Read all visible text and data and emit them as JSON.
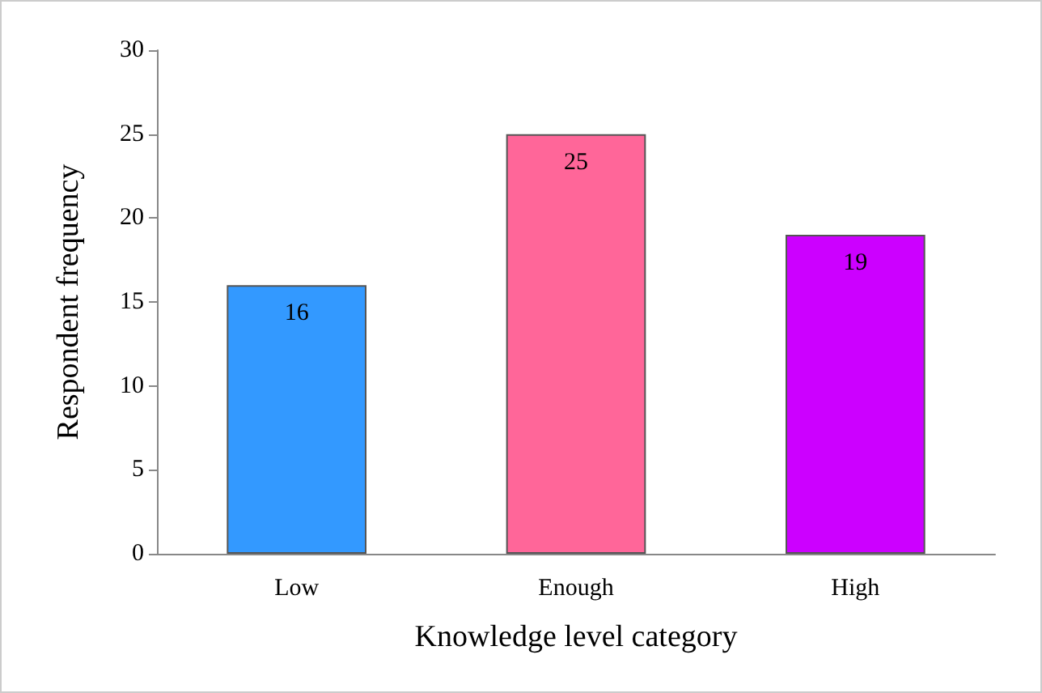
{
  "chart_data": {
    "type": "bar",
    "xlabel": "Knowledge level category",
    "ylabel": "Respondent frequency",
    "categories": [
      "Low",
      "Enough",
      "High"
    ],
    "values": [
      16,
      25,
      19
    ],
    "colors": [
      "#3399ff",
      "#ff6699",
      "#cc00ff"
    ],
    "ylim": [
      0,
      30
    ],
    "yticks": [
      0,
      5,
      10,
      15,
      20,
      25,
      30
    ],
    "grid": false,
    "data_labels": true
  }
}
